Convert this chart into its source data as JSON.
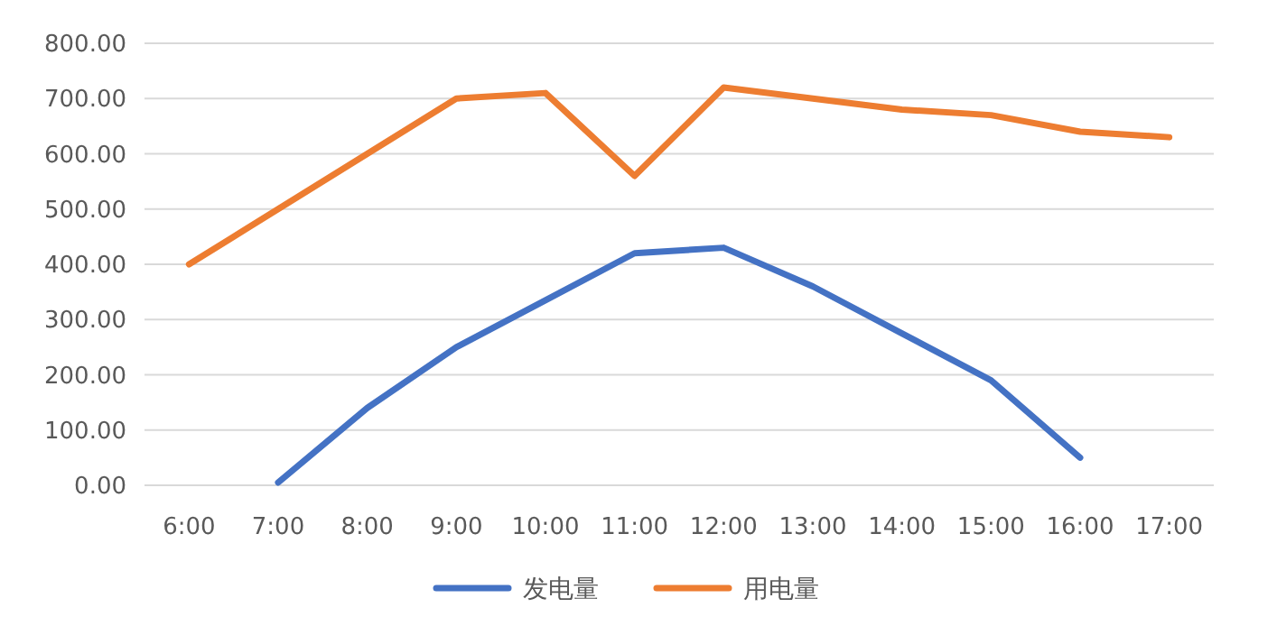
{
  "chart_data": {
    "type": "line",
    "categories": [
      "6:00",
      "7:00",
      "8:00",
      "9:00",
      "10:00",
      "11:00",
      "12:00",
      "13:00",
      "14:00",
      "15:00",
      "16:00",
      "17:00"
    ],
    "series": [
      {
        "name": "发电量",
        "color": "#4472c4",
        "values": [
          null,
          5,
          140,
          250,
          335,
          420,
          430,
          360,
          275,
          190,
          50,
          null
        ]
      },
      {
        "name": "用电量",
        "color": "#ed7d31",
        "values": [
          400,
          500,
          600,
          700,
          710,
          560,
          720,
          700,
          680,
          670,
          640,
          630
        ]
      }
    ],
    "ylim": [
      0,
      800
    ],
    "yticks": [
      {
        "value": 0,
        "label": "0.00"
      },
      {
        "value": 100,
        "label": "100.00"
      },
      {
        "value": 200,
        "label": "200.00"
      },
      {
        "value": 300,
        "label": "300.00"
      },
      {
        "value": 400,
        "label": "400.00"
      },
      {
        "value": 500,
        "label": "500.00"
      },
      {
        "value": 600,
        "label": "600.00"
      },
      {
        "value": 700,
        "label": "700.00"
      },
      {
        "value": 800,
        "label": "800.00"
      }
    ],
    "grid": "y",
    "legend": "bottom",
    "line_style": "solid"
  }
}
